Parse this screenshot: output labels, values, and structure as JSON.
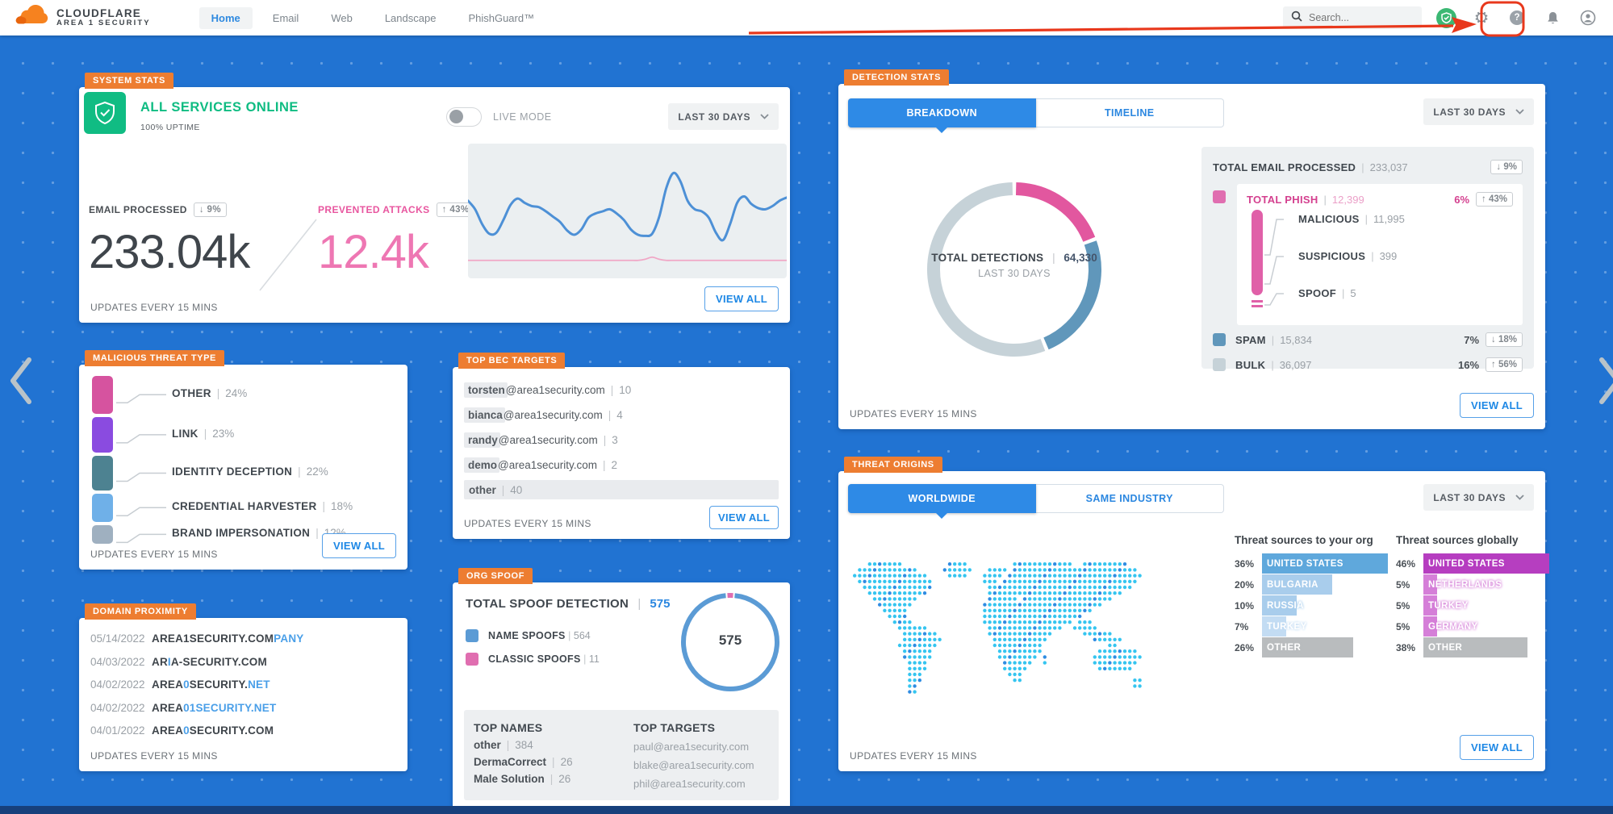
{
  "nav": {
    "brand_line1": "CLOUDFLARE",
    "brand_line2": "AREA 1 SECURITY",
    "items": [
      {
        "label": "Home",
        "active": true
      },
      {
        "label": "Email",
        "active": false
      },
      {
        "label": "Web",
        "active": false
      },
      {
        "label": "Landscape",
        "active": false
      },
      {
        "label": "PhishGuard™",
        "active": false
      }
    ],
    "search_placeholder": "Search..."
  },
  "colors": {
    "background": "#2173d2",
    "accent_blue": "#2b87e0",
    "accent_pink": "#e2579f",
    "accent_green": "#10bc83",
    "tag_orange": "#ed7d31",
    "annotation_red": "#e8381c"
  },
  "system_stats": {
    "tag": "SYSTEM STATS",
    "status": "ALL SERVICES ONLINE",
    "uptime": "100% UPTIME",
    "live_mode_label": "LIVE MODE",
    "period": "LAST 30 DAYS",
    "email_processed": {
      "label": "EMAIL PROCESSED",
      "delta": "↓ 9%",
      "value": "233.04k"
    },
    "prevented_attacks": {
      "label": "PREVENTED ATTACKS",
      "delta": "↑ 43%",
      "value": "12.4k"
    },
    "updates": "UPDATES EVERY 15 MINS",
    "view_all": "VIEW ALL"
  },
  "malicious_threat_type": {
    "tag": "MALICIOUS THREAT TYPE",
    "updates": "UPDATES EVERY 15 MINS",
    "view_all": "VIEW ALL"
  },
  "domain_proximity": {
    "tag": "DOMAIN PROXIMITY",
    "rows": [
      {
        "date": "05/14/2022",
        "parts": [
          {
            "t": "AREA1SECURITY.COM",
            "hl": false
          },
          {
            "t": "PANY",
            "hl": true
          }
        ]
      },
      {
        "date": "04/03/2022",
        "parts": [
          {
            "t": "AR",
            "hl": false
          },
          {
            "t": "I",
            "hl": true
          },
          {
            "t": "A-SECURITY.COM",
            "hl": false
          }
        ]
      },
      {
        "date": "04/02/2022",
        "parts": [
          {
            "t": "AREA",
            "hl": false
          },
          {
            "t": "0",
            "hl": true
          },
          {
            "t": "SECURITY.",
            "hl": false
          },
          {
            "t": "NET",
            "hl": true
          }
        ]
      },
      {
        "date": "04/02/2022",
        "parts": [
          {
            "t": "AREA",
            "hl": false
          },
          {
            "t": "01SECURITY.NET",
            "hl": true
          }
        ]
      },
      {
        "date": "04/01/2022",
        "parts": [
          {
            "t": "AREA",
            "hl": false
          },
          {
            "t": "0",
            "hl": true
          },
          {
            "t": "SECURITY.COM",
            "hl": false
          }
        ]
      }
    ],
    "updates": "UPDATES EVERY 15 MINS"
  },
  "top_bec_targets": {
    "tag": "TOP BEC TARGETS",
    "rows": [
      {
        "name": "torsten",
        "rest": "@area1security.com",
        "count": "10",
        "full": false
      },
      {
        "name": "bianca",
        "rest": "@area1security.com",
        "count": "4",
        "full": false
      },
      {
        "name": "randy",
        "rest": "@area1security.com",
        "count": "3",
        "full": false
      },
      {
        "name": "demo",
        "rest": "@area1security.com",
        "count": "2",
        "full": false
      },
      {
        "name": "other",
        "rest": "",
        "count": "40",
        "full": true
      }
    ],
    "updates": "UPDATES EVERY 15 MINS",
    "view_all": "VIEW ALL"
  },
  "org_spoof": {
    "tag": "ORG SPOOF",
    "title": "TOTAL SPOOF DETECTION",
    "total": "575",
    "legend": [
      {
        "label": "NAME SPOOFS",
        "value": "564",
        "color": "#5b9bd5"
      },
      {
        "label": "CLASSIC SPOOFS",
        "value": "11",
        "color": "#e06eb0"
      }
    ],
    "donut_center": "575",
    "top_names": {
      "header": "TOP NAMES",
      "rows": [
        {
          "label": "other",
          "value": "384"
        },
        {
          "label": "DermaCorrect",
          "value": "26"
        },
        {
          "label": "Male Solution",
          "value": "26"
        }
      ]
    },
    "top_targets": {
      "header": "TOP TARGETS",
      "rows": [
        "paul@area1security.com",
        "blake@area1security.com",
        "phil@area1security.com"
      ]
    }
  },
  "detection_stats": {
    "tag": "DETECTION STATS",
    "tabs": [
      {
        "label": "BREAKDOWN",
        "active": true
      },
      {
        "label": "TIMELINE",
        "active": false
      }
    ],
    "period": "LAST 30 DAYS",
    "donut_center": {
      "label": "TOTAL DETECTIONS",
      "value": "64,330",
      "sub": "LAST 30 DAYS"
    },
    "total_email": {
      "label": "TOTAL EMAIL PROCESSED",
      "value": "233,037",
      "delta": "↓ 9%"
    },
    "phish": {
      "label": "TOTAL PHISH",
      "value": "12,399",
      "pct": "6%",
      "delta": "↑ 43%",
      "color": "#e2579f",
      "sub": [
        {
          "label": "MALICIOUS",
          "value": "11,995"
        },
        {
          "label": "SUSPICIOUS",
          "value": "399"
        },
        {
          "label": "SPOOF",
          "value": "5"
        }
      ]
    },
    "spam": {
      "label": "SPAM",
      "value": "15,834",
      "pct": "7%",
      "delta": "↓ 18%",
      "color": "#6097bb"
    },
    "bulk": {
      "label": "BULK",
      "value": "36,097",
      "pct": "16%",
      "delta": "↑ 56%",
      "color": "#c6d2d8"
    },
    "updates": "UPDATES EVERY 15 MINS",
    "view_all": "VIEW ALL"
  },
  "threat_origins": {
    "tag": "THREAT ORIGINS",
    "tabs": [
      {
        "label": "WORLDWIDE",
        "active": true
      },
      {
        "label": "SAME INDUSTRY",
        "active": false
      }
    ],
    "period": "LAST 30 DAYS",
    "org_header": "Threat sources to your org",
    "global_header": "Threat sources globally",
    "updates": "UPDATES EVERY 15 MINS",
    "view_all": "VIEW ALL"
  },
  "chart_data": [
    {
      "name": "email_activity",
      "type": "line",
      "title": "Email processed vs prevented attacks (last 30 days, unlabeled axes)",
      "xlabel": "",
      "ylabel": "",
      "grid": false,
      "legend_position": "none",
      "ylim": [
        0,
        100
      ],
      "series": [
        {
          "name": "EMAIL PROCESSED",
          "color": "#4d90d6",
          "values": [
            60,
            52,
            38,
            29,
            30,
            42,
            56,
            62,
            58,
            55,
            54,
            50,
            45,
            40,
            32,
            28,
            33,
            44,
            48,
            50,
            52,
            48,
            42,
            33,
            28,
            27,
            29,
            45,
            72,
            86,
            78,
            60,
            52,
            50,
            44,
            30,
            23,
            38,
            58,
            64,
            57,
            53,
            52,
            55,
            60,
            63
          ]
        },
        {
          "name": "PREVENTED ATTACKS",
          "color": "#f0a7c6",
          "values": [
            4,
            4,
            4,
            4,
            4,
            4,
            4,
            4,
            4,
            4,
            4,
            4,
            4,
            4,
            4,
            4,
            4,
            4,
            4,
            4,
            4,
            4,
            4,
            4,
            4,
            5,
            7,
            5,
            4,
            4,
            4,
            4,
            4,
            4,
            4,
            4,
            4,
            4,
            4,
            4,
            4,
            4,
            4,
            4,
            4,
            4
          ]
        }
      ]
    },
    {
      "name": "detection_breakdown",
      "type": "pie",
      "title": "Detection breakdown donut",
      "labels": [
        "TOTAL PHISH",
        "SPAM",
        "BULK"
      ],
      "values": [
        12399,
        15834,
        36097
      ],
      "colors": [
        "#e2579f",
        "#6097bb",
        "#c6d2d8"
      ],
      "center_label": "TOTAL DETECTIONS",
      "center_value": 64330,
      "center_sub": "LAST 30 DAYS"
    },
    {
      "name": "org_spoof_donut",
      "type": "pie",
      "title": "Org spoof donut",
      "labels": [
        "NAME SPOOFS",
        "CLASSIC SPOOFS"
      ],
      "values": [
        564,
        11
      ],
      "colors": [
        "#5b9bd5",
        "#e06eb0"
      ],
      "center_value": 575
    },
    {
      "name": "threat_sources_org",
      "type": "bar",
      "title": "Threat sources to your org (%)",
      "categories": [
        "UNITED STATES",
        "BULGARIA",
        "RUSSIA",
        "TURKEY",
        "OTHER"
      ],
      "values": [
        36,
        20,
        10,
        7,
        26
      ],
      "colors": [
        "#5fa8dc",
        "#a9cdec",
        "#a9cdec",
        "#c3dcf3",
        "#b9bcbe"
      ]
    },
    {
      "name": "threat_sources_global",
      "type": "bar",
      "title": "Threat sources globally (%)",
      "categories": [
        "UNITED STATES",
        "NETHERLANDS",
        "TURKEY",
        "GERMANY",
        "OTHER"
      ],
      "values": [
        46,
        5,
        5,
        5,
        38
      ],
      "colors": [
        "#b63ec0",
        "#d57fd8",
        "#d57fd8",
        "#d57fd8",
        "#b9bcbe"
      ]
    },
    {
      "name": "malicious_threat_type",
      "type": "bar",
      "title": "Malicious threat type (%)",
      "categories": [
        "OTHER",
        "LINK",
        "IDENTITY DECEPTION",
        "CREDENTIAL HARVESTER",
        "BRAND IMPERSONATION"
      ],
      "values": [
        24,
        23,
        22,
        18,
        12
      ],
      "colors": [
        "#d6539f",
        "#8a4be0",
        "#4d8291",
        "#6fb0e8",
        "#9fb0c0"
      ]
    }
  ]
}
